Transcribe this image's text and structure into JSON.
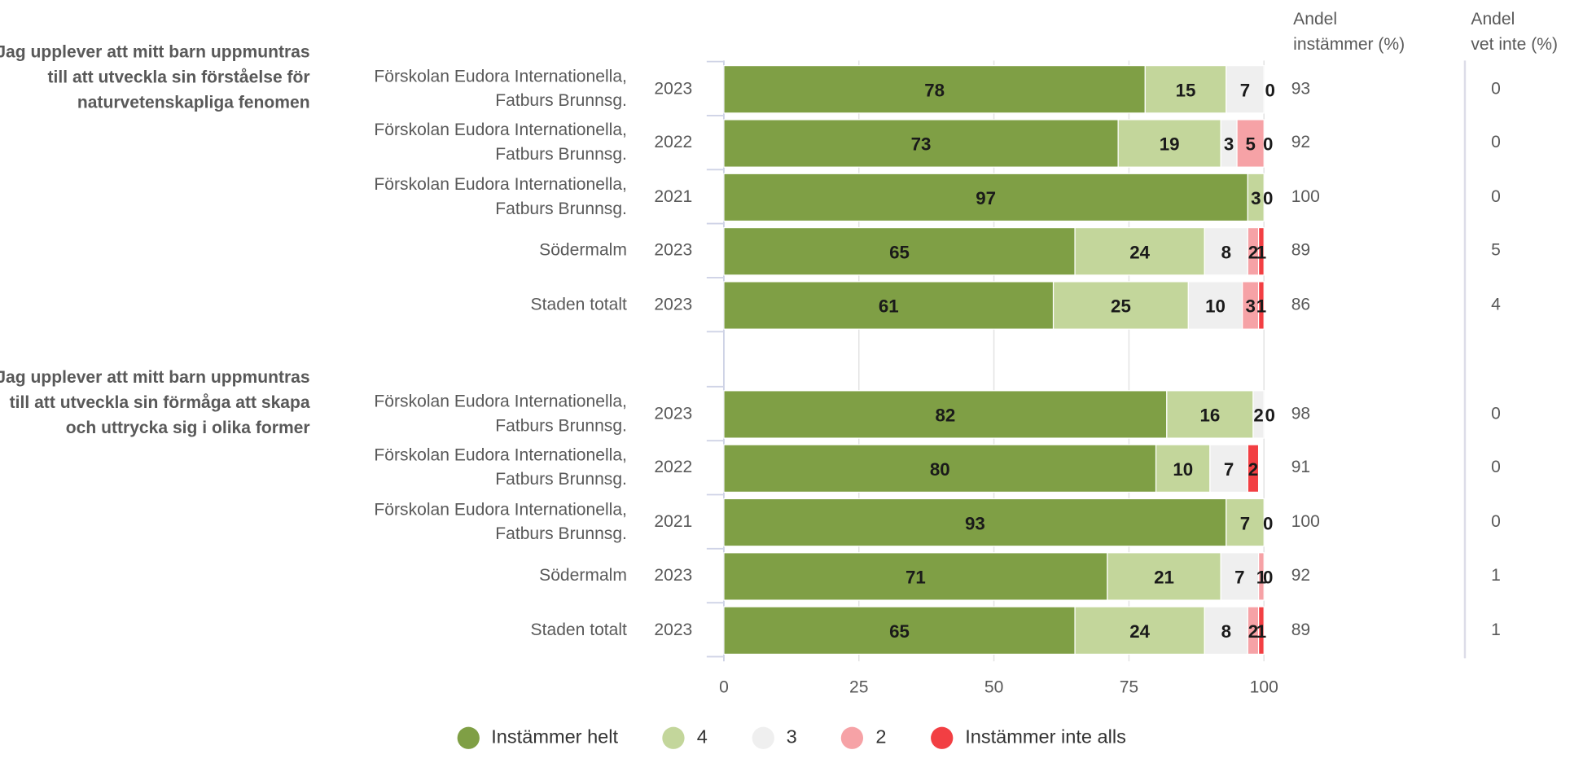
{
  "chart_data": {
    "type": "bar",
    "stacked": true,
    "orientation": "horizontal",
    "groups": [
      {
        "question": "Jag upplever att mitt barn uppmuntras till att utveckla sin förståelse för naturvetenskapliga fenomen",
        "rows": [
          {
            "unit": [
              "Förskolan Eudora Internationella,",
              "Fatburs Brunnsg."
            ],
            "year": "2023",
            "values": [
              78,
              15,
              7,
              0,
              0
            ],
            "labels": [
              "78",
              "15",
              "7",
              "0",
              ""
            ],
            "andel_instammer": "93",
            "andel_vet_inte": "0"
          },
          {
            "unit": [
              "Förskolan Eudora Internationella,",
              "Fatburs Brunnsg."
            ],
            "year": "2022",
            "values": [
              73,
              19,
              3,
              5,
              0
            ],
            "labels": [
              "73",
              "19",
              "3",
              "5",
              "0"
            ],
            "andel_instammer": "92",
            "andel_vet_inte": "0"
          },
          {
            "unit": [
              "Förskolan Eudora Internationella,",
              "Fatburs Brunnsg."
            ],
            "year": "2021",
            "values": [
              97,
              3,
              0,
              0,
              0
            ],
            "labels": [
              "97",
              "3",
              "0",
              "",
              ""
            ],
            "andel_instammer": "100",
            "andel_vet_inte": "0"
          },
          {
            "unit": [
              "Södermalm"
            ],
            "year": "2023",
            "values": [
              65,
              24,
              8,
              2,
              1
            ],
            "labels": [
              "65",
              "24",
              "8",
              "2",
              "1"
            ],
            "andel_instammer": "89",
            "andel_vet_inte": "5"
          },
          {
            "unit": [
              "Staden totalt"
            ],
            "year": "2023",
            "values": [
              61,
              25,
              10,
              3,
              1
            ],
            "labels": [
              "61",
              "25",
              "10",
              "3",
              "1"
            ],
            "andel_instammer": "86",
            "andel_vet_inte": "4"
          }
        ]
      },
      {
        "question": "Jag upplever att mitt barn uppmuntras till att utveckla sin förmåga att skapa och uttrycka sig i olika former",
        "rows": [
          {
            "unit": [
              "Förskolan Eudora Internationella,",
              "Fatburs Brunnsg."
            ],
            "year": "2023",
            "values": [
              82,
              16,
              2,
              0,
              0
            ],
            "labels": [
              "82",
              "16",
              "2",
              "0",
              ""
            ],
            "andel_instammer": "98",
            "andel_vet_inte": "0"
          },
          {
            "unit": [
              "Förskolan Eudora Internationella,",
              "Fatburs Brunnsg."
            ],
            "year": "2022",
            "values": [
              80,
              10,
              7,
              0,
              2
            ],
            "labels": [
              "80",
              "10",
              "7",
              "0",
              "2"
            ],
            "andel_instammer": "91",
            "andel_vet_inte": "0"
          },
          {
            "unit": [
              "Förskolan Eudora Internationella,",
              "Fatburs Brunnsg."
            ],
            "year": "2021",
            "values": [
              93,
              7,
              0,
              0,
              0
            ],
            "labels": [
              "93",
              "7",
              "0",
              "",
              ""
            ],
            "andel_instammer": "100",
            "andel_vet_inte": "0"
          },
          {
            "unit": [
              "Södermalm"
            ],
            "year": "2023",
            "values": [
              71,
              21,
              7,
              1,
              0
            ],
            "labels": [
              "71",
              "21",
              "7",
              "1",
              "0"
            ],
            "andel_instammer": "92",
            "andel_vet_inte": "1"
          },
          {
            "unit": [
              "Staden totalt"
            ],
            "year": "2023",
            "values": [
              65,
              24,
              8,
              2,
              1
            ],
            "labels": [
              "65",
              "24",
              "8",
              "2",
              "1"
            ],
            "andel_instammer": "89",
            "andel_vet_inte": "1"
          }
        ]
      }
    ],
    "series": [
      {
        "name": "Instämmer helt",
        "color": "#7f9f45"
      },
      {
        "name": "4",
        "color": "#c3d69b"
      },
      {
        "name": "3",
        "color": "#efefef"
      },
      {
        "name": "2",
        "color": "#f6a2a6"
      },
      {
        "name": "Instämmer inte alls",
        "color": "#f23f43"
      }
    ],
    "xlim": [
      0,
      100
    ],
    "xticks": [
      "0",
      "25",
      "50",
      "75",
      "100"
    ],
    "columns": {
      "andel_instammer": [
        "Andel",
        "instämmer (%)"
      ],
      "andel_vet_inte": [
        "Andel",
        "vet inte (%)"
      ]
    },
    "grid": true,
    "legend_position": "bottom"
  }
}
